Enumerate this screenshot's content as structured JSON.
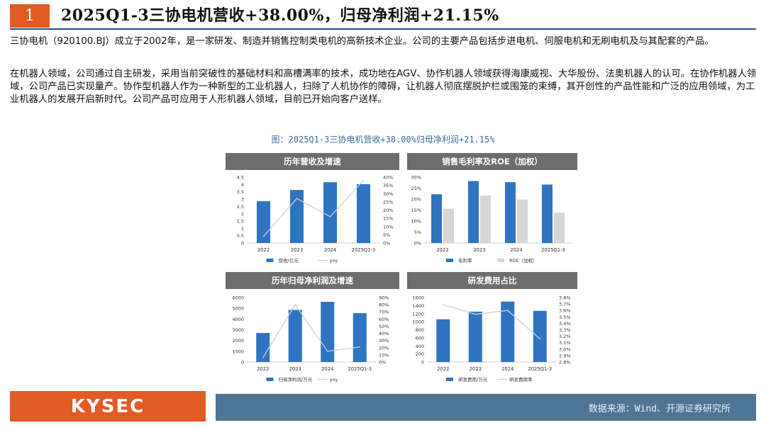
{
  "header": {
    "number": "1",
    "title": "2025Q1-3三协电机营收+38.00%，归母净利润+21.15%"
  },
  "body": {
    "para1": "三协电机（920100.BJ）成立于2002年，是一家研发、制造并销售控制类电机的高新技术企业。公司的主要产品包括步进电机、伺服电机和无刷电机及与其配套的产品。",
    "para2": "在机器人领域，公司通过自主研发，采用当前突破性的基础材料和高槽满率的技术，成功地在AGV、协作机器人领域获得海康威视、大华股份、法奥机器人的认可。在协作机器人领域，公司产品已实现量产。协作型机器人作为一种新型的工业机器人，扫除了人机协作的障碍，让机器人彻底摆脱护栏或围笼的束缚，其开创性的产品性能和广泛的应用领域，为工业机器人的发展开启新时代。公司产品可应用于人形机器人领域，目前已开始向客户送样。"
  },
  "figure_caption": "图：2025Q1-3三协电机营收+38.00%归母净利润+21.15%",
  "colors": {
    "accent": "#e25a24",
    "bar_blue": "#2e74c0",
    "bar_grey": "#d6d6d6",
    "line_grey": "#d0d0d0",
    "title_bar": "#6d6d6d",
    "footer_bar": "#4e7593"
  },
  "chart_data": [
    {
      "type": "bar",
      "title": "历年营收及增速",
      "categories": [
        "2022",
        "2023",
        "2024",
        "2025Q1-3"
      ],
      "series": [
        {
          "name": "营收/亿元",
          "kind": "bar",
          "axis": "left",
          "values": [
            2.85,
            3.62,
            4.15,
            4.02
          ]
        },
        {
          "name": "yoy",
          "kind": "line",
          "axis": "right",
          "values": [
            0.04,
            0.27,
            0.16,
            0.38
          ]
        }
      ],
      "left_ticks": [
        "0",
        "0.5",
        "1",
        "1.5",
        "2",
        "2.5",
        "3",
        "3.5",
        "4",
        "4.5"
      ],
      "right_ticks": [
        "0%",
        "5%",
        "10%",
        "15%",
        "20%",
        "25%",
        "30%",
        "35%",
        "40%"
      ],
      "ylim_left": [
        0,
        4.5
      ],
      "ylim_right": [
        0,
        0.4
      ]
    },
    {
      "type": "bar",
      "title": "销售毛利率及ROE（加权）",
      "categories": [
        "2022",
        "2023",
        "2024",
        "2025Q1-3"
      ],
      "series": [
        {
          "name": "毛利率",
          "kind": "bar",
          "color": "blue",
          "values": [
            0.222,
            0.282,
            0.277,
            0.266
          ]
        },
        {
          "name": "ROE（加权）",
          "kind": "bar",
          "color": "grey",
          "values": [
            0.156,
            0.216,
            0.198,
            0.138
          ]
        }
      ],
      "left_ticks": [
        "0%",
        "5%",
        "10%",
        "15%",
        "20%",
        "25%",
        "30%"
      ],
      "ylim_left": [
        0,
        0.3
      ]
    },
    {
      "type": "bar",
      "title": "历年归母净利润及增速",
      "categories": [
        "2022",
        "2023",
        "2024",
        "2025Q1-3"
      ],
      "series": [
        {
          "name": "归母净利润/万元",
          "kind": "bar",
          "axis": "left",
          "values": [
            2700,
            4850,
            5600,
            4550
          ]
        },
        {
          "name": "yoy",
          "kind": "line",
          "axis": "right",
          "values": [
            0.06,
            0.8,
            0.15,
            0.21
          ]
        }
      ],
      "left_ticks": [
        "0",
        "1000",
        "2000",
        "3000",
        "4000",
        "5000",
        "6000"
      ],
      "right_ticks": [
        "0%",
        "10%",
        "20%",
        "30%",
        "40%",
        "50%",
        "60%",
        "70%",
        "80%",
        "90%"
      ],
      "ylim_left": [
        0,
        6000
      ],
      "ylim_right": [
        0,
        0.9
      ]
    },
    {
      "type": "bar",
      "title": "研发费用占比",
      "categories": [
        "2022",
        "2023",
        "2024",
        "2025Q1-3"
      ],
      "series": [
        {
          "name": "研发费用/万元",
          "kind": "bar",
          "axis": "left",
          "values": [
            1060,
            1250,
            1500,
            1270
          ]
        },
        {
          "name": "研发费用率",
          "kind": "line",
          "axis": "right",
          "values": [
            0.0369,
            0.0354,
            0.036,
            0.0316
          ]
        }
      ],
      "left_ticks": [
        "0",
        "200",
        "400",
        "600",
        "800",
        "1000",
        "1200",
        "1400",
        "1600"
      ],
      "right_ticks": [
        "2.8%",
        "2.9%",
        "3.0%",
        "3.1%",
        "3.2%",
        "3.3%",
        "3.4%",
        "3.5%",
        "3.6%",
        "3.7%",
        "3.8%"
      ],
      "ylim_left": [
        0,
        1600
      ],
      "ylim_right": [
        0.028,
        0.038
      ]
    }
  ],
  "footer": {
    "logo_text": "KYSEC",
    "source": "数据来源：Wind、开源证券研究所"
  }
}
